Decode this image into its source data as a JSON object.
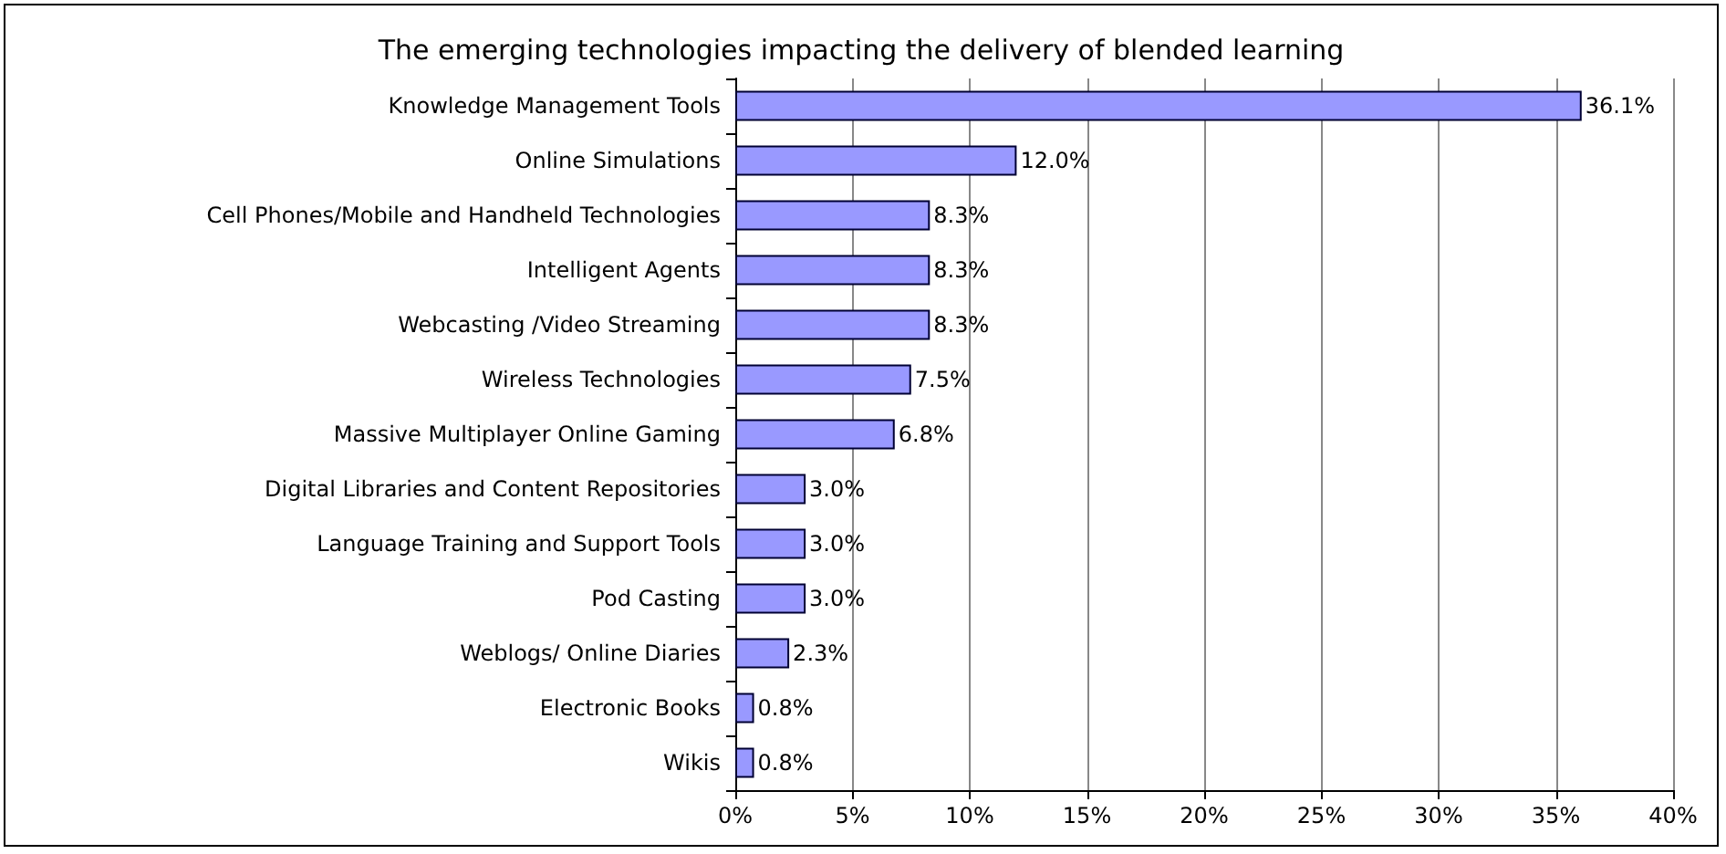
{
  "chart_data": {
    "type": "bar",
    "orientation": "horizontal",
    "title": "The emerging technologies impacting the delivery of blended learning",
    "categories": [
      "Knowledge Management Tools",
      "Online Simulations",
      "Cell Phones/Mobile and Handheld Technologies",
      "Intelligent Agents",
      "Webcasting /Video Streaming",
      "Wireless Technologies",
      "Massive Multiplayer Online Gaming",
      "Digital Libraries and Content Repositories",
      "Language Training and Support Tools",
      "Pod Casting",
      "Weblogs/ Online Diaries",
      "Electronic Books",
      "Wikis"
    ],
    "values": [
      36.1,
      12.0,
      8.3,
      8.3,
      8.3,
      7.5,
      6.8,
      3.0,
      3.0,
      3.0,
      2.3,
      0.8,
      0.8
    ],
    "value_labels": [
      "36.1%",
      "12.0%",
      "8.3%",
      "8.3%",
      "8.3%",
      "7.5%",
      "6.8%",
      "3.0%",
      "3.0%",
      "3.0%",
      "2.3%",
      "0.8%",
      "0.8%"
    ],
    "color": "#9999ff",
    "xlim": [
      0,
      40
    ],
    "xticks": [
      {
        "value": 0,
        "label": "0%"
      },
      {
        "value": 5,
        "label": "5%"
      },
      {
        "value": 10,
        "label": "10%"
      },
      {
        "value": 15,
        "label": "15%"
      },
      {
        "value": 20,
        "label": "20%"
      },
      {
        "value": 25,
        "label": "25%"
      },
      {
        "value": 30,
        "label": "30%"
      },
      {
        "value": 35,
        "label": "35%"
      },
      {
        "value": 40,
        "label": "40%"
      }
    ],
    "grid": "x"
  }
}
